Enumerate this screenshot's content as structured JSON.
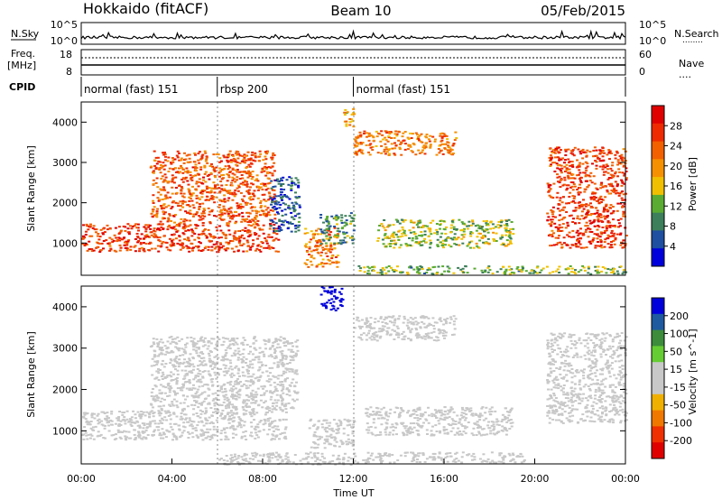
{
  "header": {
    "station": "Hokkaido (fitACF)",
    "beam": "Beam 10",
    "date": "05/Feb/2015"
  },
  "noise_panel": {
    "left_label": "N.Sky",
    "right_label": "N.Search",
    "left_ticks": [
      "10^5",
      "10^0"
    ],
    "right_ticks": [
      "10^5",
      "10^0"
    ],
    "right_legend_line": "........"
  },
  "freq_panel": {
    "left_label_line1": "Freq.",
    "left_label_line2": "[MHz]",
    "right_label": "Nave",
    "left_ticks": [
      "18",
      "8"
    ],
    "right_ticks": [
      "60",
      "0"
    ],
    "right_legend_line": "...."
  },
  "cpid_panel": {
    "label": "CPID",
    "segments": [
      {
        "start_hour": 0,
        "end_hour": 6,
        "name": "normal (fast) 151"
      },
      {
        "start_hour": 6,
        "end_hour": 12,
        "name": "rbsp 200"
      },
      {
        "start_hour": 12,
        "end_hour": 24,
        "name": "normal (fast) 151"
      }
    ]
  },
  "colors": {
    "power_scale": [
      "#0000dd",
      "#1e4fa0",
      "#3c7f5a",
      "#5aab32",
      "#f0c000",
      "#f59000",
      "#f26000",
      "#ee2a00",
      "#e00000"
    ],
    "velocity_scale": [
      "#e00000",
      "#f03000",
      "#f07800",
      "#f0b000",
      "#c8c8c8",
      "#c8c8c8",
      "#66cc33",
      "#3c8c3c",
      "#1e5aa0",
      "#0000dd"
    ]
  },
  "chart_data": [
    {
      "type": "heatmap",
      "name": "power",
      "xlabel": "",
      "ylabel": "Slant Range [km]",
      "xlim": [
        0,
        24
      ],
      "ylim": [
        200,
        4500
      ],
      "yticks": [
        "1000",
        "2000",
        "3000",
        "4000"
      ],
      "colorbar_label": "Power [dB]",
      "colorbar_ticks": [
        "28",
        "24",
        "20",
        "16",
        "12",
        "8",
        "4"
      ],
      "regions": [
        {
          "x": [
            0,
            8.7
          ],
          "y": [
            800,
            1500
          ],
          "value": 26
        },
        {
          "x": [
            3.0,
            8.5
          ],
          "y": [
            1500,
            3300
          ],
          "value": 24
        },
        {
          "x": [
            8.3,
            9.6
          ],
          "y": [
            1300,
            2700
          ],
          "value": 6
        },
        {
          "x": [
            9.8,
            11.3
          ],
          "y": [
            400,
            1400
          ],
          "value": 22
        },
        {
          "x": [
            10.5,
            12.0
          ],
          "y": [
            1000,
            1800
          ],
          "value": 10
        },
        {
          "x": [
            12.0,
            16.5
          ],
          "y": [
            3200,
            3800
          ],
          "value": 22
        },
        {
          "x": [
            13.0,
            19.0
          ],
          "y": [
            900,
            1600
          ],
          "value": 14
        },
        {
          "x": [
            12.0,
            24.0
          ],
          "y": [
            250,
            450
          ],
          "value": 12
        },
        {
          "x": [
            20.5,
            24.0
          ],
          "y": [
            900,
            3400
          ],
          "value": 26
        },
        {
          "x": [
            11.5,
            12.0
          ],
          "y": [
            3900,
            4400
          ],
          "value": 18
        }
      ]
    },
    {
      "type": "heatmap",
      "name": "velocity",
      "xlabel": "Time UT",
      "ylabel": "Slant Range [km]",
      "xlim": [
        0,
        24
      ],
      "ylim": [
        200,
        4500
      ],
      "xticks": [
        "00:00",
        "04:00",
        "08:00",
        "12:00",
        "16:00",
        "20:00",
        "00:00"
      ],
      "yticks": [
        "1000",
        "2000",
        "3000",
        "4000"
      ],
      "colorbar_label": "Velocity [m s^-1]",
      "colorbar_ticks": [
        "200",
        "100",
        "50",
        "15",
        "-15",
        "-50",
        "-100",
        "-200"
      ],
      "regions": [
        {
          "x": [
            0,
            9.0
          ],
          "y": [
            800,
            1500
          ],
          "value": 0
        },
        {
          "x": [
            3.0,
            9.5
          ],
          "y": [
            1500,
            3300
          ],
          "value": 0
        },
        {
          "x": [
            10.0,
            12.0
          ],
          "y": [
            600,
            1300
          ],
          "value": 0
        },
        {
          "x": [
            10.5,
            11.5
          ],
          "y": [
            3900,
            4500
          ],
          "value": 220
        },
        {
          "x": [
            12.0,
            16.5
          ],
          "y": [
            3200,
            3800
          ],
          "value": 0
        },
        {
          "x": [
            12.5,
            19.0
          ],
          "y": [
            900,
            1600
          ],
          "value": 30
        },
        {
          "x": [
            12.0,
            19.5
          ],
          "y": [
            250,
            500
          ],
          "value": 30
        },
        {
          "x": [
            20.5,
            24.0
          ],
          "y": [
            1200,
            3400
          ],
          "value": 35
        },
        {
          "x": [
            6.0,
            12.0
          ],
          "y": [
            200,
            500
          ],
          "value": -30
        }
      ]
    }
  ]
}
